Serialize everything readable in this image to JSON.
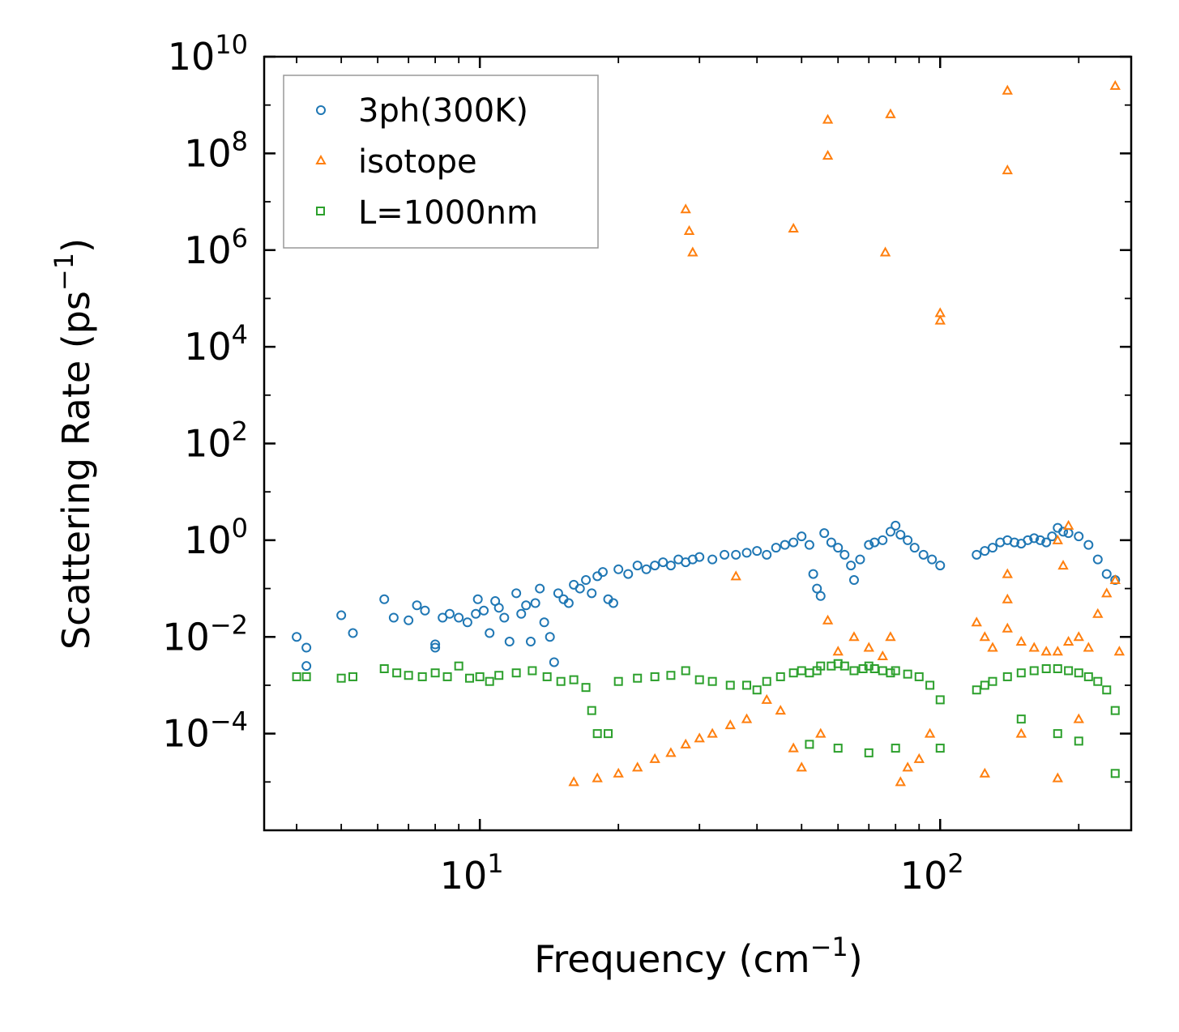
{
  "chart_data": {
    "type": "scatter",
    "title": "",
    "xlabel": "Frequency (cm",
    "xlabel_sup": "−1",
    "xlabel_end": ")",
    "ylabel": "Scattering Rate (ps",
    "ylabel_sup": "−1",
    "ylabel_end": ")",
    "xscale": "log",
    "yscale": "log",
    "xlim": [
      3.4,
      260
    ],
    "ylim": [
      1e-06,
      10000000000.0
    ],
    "x_ticks": [
      {
        "value": 10,
        "base": "10",
        "exp": "1"
      },
      {
        "value": 100,
        "base": "10",
        "exp": "2"
      }
    ],
    "y_ticks": [
      {
        "value": 10000000000.0,
        "base": "10",
        "exp": "10"
      },
      {
        "value": 100000000.0,
        "base": "10",
        "exp": "8"
      },
      {
        "value": 1000000.0,
        "base": "10",
        "exp": "6"
      },
      {
        "value": 10000.0,
        "base": "10",
        "exp": "4"
      },
      {
        "value": 100.0,
        "base": "10",
        "exp": "2"
      },
      {
        "value": 1.0,
        "base": "10",
        "exp": "0"
      },
      {
        "value": 0.01,
        "base": "10",
        "exp": "−2"
      },
      {
        "value": 0.0001,
        "base": "10",
        "exp": "−4"
      }
    ],
    "legend_position": "top-left",
    "series": [
      {
        "name": "3ph(300K)",
        "color": "#1f77b4",
        "marker": "circle",
        "points": [
          [
            4.0,
            0.01
          ],
          [
            4.2,
            0.006
          ],
          [
            4.2,
            0.0025
          ],
          [
            5.0,
            0.028
          ],
          [
            5.3,
            0.012
          ],
          [
            6.2,
            0.06
          ],
          [
            6.5,
            0.025
          ],
          [
            7.0,
            0.022
          ],
          [
            7.3,
            0.045
          ],
          [
            7.6,
            0.035
          ],
          [
            8.0,
            0.007
          ],
          [
            8.0,
            0.006
          ],
          [
            8.3,
            0.025
          ],
          [
            8.6,
            0.03
          ],
          [
            9.0,
            0.025
          ],
          [
            9.4,
            0.02
          ],
          [
            9.8,
            0.03
          ],
          [
            9.9,
            0.06
          ],
          [
            10.2,
            0.035
          ],
          [
            10.5,
            0.012
          ],
          [
            10.8,
            0.055
          ],
          [
            11.0,
            0.04
          ],
          [
            11.3,
            0.025
          ],
          [
            11.6,
            0.008
          ],
          [
            12.0,
            0.08
          ],
          [
            12.3,
            0.03
          ],
          [
            12.6,
            0.045
          ],
          [
            12.9,
            0.008
          ],
          [
            13.2,
            0.05
          ],
          [
            13.5,
            0.1
          ],
          [
            13.8,
            0.02
          ],
          [
            14.2,
            0.01
          ],
          [
            14.5,
            0.003
          ],
          [
            14.8,
            0.08
          ],
          [
            15.2,
            0.06
          ],
          [
            15.6,
            0.05
          ],
          [
            16.0,
            0.12
          ],
          [
            16.5,
            0.1
          ],
          [
            17.0,
            0.15
          ],
          [
            17.5,
            0.08
          ],
          [
            18.0,
            0.18
          ],
          [
            18.5,
            0.22
          ],
          [
            19.0,
            0.06
          ],
          [
            19.5,
            0.05
          ],
          [
            20.0,
            0.25
          ],
          [
            21.0,
            0.2
          ],
          [
            22.0,
            0.3
          ],
          [
            23.0,
            0.25
          ],
          [
            24.0,
            0.3
          ],
          [
            25.0,
            0.35
          ],
          [
            26.0,
            0.3
          ],
          [
            27.0,
            0.4
          ],
          [
            28.0,
            0.35
          ],
          [
            29.0,
            0.4
          ],
          [
            30.0,
            0.45
          ],
          [
            32.0,
            0.4
          ],
          [
            34.0,
            0.5
          ],
          [
            36.0,
            0.5
          ],
          [
            38.0,
            0.55
          ],
          [
            40.0,
            0.6
          ],
          [
            42.0,
            0.5
          ],
          [
            44.0,
            0.7
          ],
          [
            46.0,
            0.8
          ],
          [
            48.0,
            0.9
          ],
          [
            50.0,
            1.2
          ],
          [
            52.0,
            0.8
          ],
          [
            53.0,
            0.2
          ],
          [
            54.0,
            0.1
          ],
          [
            55.0,
            0.07
          ],
          [
            56.0,
            1.4
          ],
          [
            58.0,
            0.9
          ],
          [
            60.0,
            0.7
          ],
          [
            62.0,
            0.5
          ],
          [
            64.0,
            0.3
          ],
          [
            65.0,
            0.15
          ],
          [
            67.0,
            0.4
          ],
          [
            70.0,
            0.8
          ],
          [
            72.0,
            0.9
          ],
          [
            75.0,
            1.0
          ],
          [
            78.0,
            1.5
          ],
          [
            80.0,
            2.0
          ],
          [
            82.0,
            1.3
          ],
          [
            85.0,
            1.0
          ],
          [
            88.0,
            0.7
          ],
          [
            92.0,
            0.5
          ],
          [
            96.0,
            0.4
          ],
          [
            100.0,
            0.3
          ],
          [
            120.0,
            0.5
          ],
          [
            125.0,
            0.6
          ],
          [
            130.0,
            0.7
          ],
          [
            135.0,
            0.9
          ],
          [
            140.0,
            1.0
          ],
          [
            145.0,
            0.9
          ],
          [
            150.0,
            0.85
          ],
          [
            155.0,
            1.0
          ],
          [
            160.0,
            1.1
          ],
          [
            165.0,
            1.0
          ],
          [
            170.0,
            0.9
          ],
          [
            175.0,
            1.2
          ],
          [
            180.0,
            1.8
          ],
          [
            185.0,
            1.5
          ],
          [
            190.0,
            1.4
          ],
          [
            200.0,
            1.2
          ],
          [
            210.0,
            0.8
          ],
          [
            220.0,
            0.4
          ],
          [
            230.0,
            0.2
          ],
          [
            240.0,
            0.15
          ]
        ]
      },
      {
        "name": "isotope",
        "color": "#ff7f0e",
        "marker": "triangle",
        "points": [
          [
            28.0,
            7000000.0
          ],
          [
            28.5,
            2500000.0
          ],
          [
            29.0,
            900000.0
          ],
          [
            36.0,
            0.18
          ],
          [
            48.0,
            2800000.0
          ],
          [
            57.0,
            500000000.0
          ],
          [
            57.0,
            90000000.0
          ],
          [
            57.0,
            0.022
          ],
          [
            78.0,
            650000000.0
          ],
          [
            76.0,
            900000.0
          ],
          [
            100.0,
            50000.0
          ],
          [
            100.0,
            35000.0
          ],
          [
            140.0,
            2000000000.0
          ],
          [
            140.0,
            45000000.0
          ],
          [
            240.0,
            2500000000.0
          ],
          [
            190.0,
            2.0
          ],
          [
            180.0,
            1.0
          ],
          [
            185.0,
            0.3
          ],
          [
            140.0,
            0.2
          ],
          [
            140.0,
            0.06
          ],
          [
            16.0,
            1e-05
          ],
          [
            18.0,
            1.2e-05
          ],
          [
            20.0,
            1.5e-05
          ],
          [
            22.0,
            2e-05
          ],
          [
            24.0,
            3e-05
          ],
          [
            26.0,
            4e-05
          ],
          [
            28.0,
            6e-05
          ],
          [
            30.0,
            8e-05
          ],
          [
            32.0,
            0.0001
          ],
          [
            35.0,
            0.00015
          ],
          [
            38.0,
            0.0002
          ],
          [
            42.0,
            0.0005
          ],
          [
            45.0,
            0.0003
          ],
          [
            48.0,
            5e-05
          ],
          [
            50.0,
            2e-05
          ],
          [
            55.0,
            0.0001
          ],
          [
            60.0,
            0.005
          ],
          [
            65.0,
            0.01
          ],
          [
            70.0,
            0.006
          ],
          [
            75.0,
            0.004
          ],
          [
            78.0,
            0.01
          ],
          [
            82.0,
            1e-05
          ],
          [
            85.0,
            2e-05
          ],
          [
            90.0,
            3e-05
          ],
          [
            95.0,
            0.0001
          ],
          [
            120.0,
            0.02
          ],
          [
            125.0,
            0.01
          ],
          [
            130.0,
            0.006
          ],
          [
            140.0,
            0.015
          ],
          [
            150.0,
            0.008
          ],
          [
            160.0,
            0.006
          ],
          [
            170.0,
            0.005
          ],
          [
            180.0,
            0.005
          ],
          [
            190.0,
            0.008
          ],
          [
            200.0,
            0.01
          ],
          [
            210.0,
            0.006
          ],
          [
            220.0,
            0.03
          ],
          [
            230.0,
            0.08
          ],
          [
            240.0,
            0.15
          ],
          [
            245.0,
            0.005
          ],
          [
            125.0,
            1.5e-05
          ],
          [
            150.0,
            0.0001
          ],
          [
            180.0,
            1.2e-05
          ],
          [
            200.0,
            0.0002
          ]
        ]
      },
      {
        "name": "L=1000nm",
        "color": "#2ca02c",
        "marker": "square",
        "points": [
          [
            4.0,
            0.0015
          ],
          [
            4.2,
            0.0015
          ],
          [
            5.0,
            0.0014
          ],
          [
            5.3,
            0.0015
          ],
          [
            6.2,
            0.0022
          ],
          [
            6.6,
            0.0018
          ],
          [
            7.0,
            0.0016
          ],
          [
            7.5,
            0.0015
          ],
          [
            8.0,
            0.0018
          ],
          [
            8.5,
            0.0015
          ],
          [
            9.0,
            0.0025
          ],
          [
            9.5,
            0.0014
          ],
          [
            10.0,
            0.0015
          ],
          [
            10.5,
            0.0012
          ],
          [
            11.0,
            0.0016
          ],
          [
            12.0,
            0.0018
          ],
          [
            13.0,
            0.002
          ],
          [
            14.0,
            0.0015
          ],
          [
            15.0,
            0.0012
          ],
          [
            16.0,
            0.0013
          ],
          [
            17.0,
            0.0009
          ],
          [
            17.5,
            0.0003
          ],
          [
            18.0,
            0.0001
          ],
          [
            19.0,
            0.0001
          ],
          [
            20.0,
            0.0012
          ],
          [
            22.0,
            0.0014
          ],
          [
            24.0,
            0.0015
          ],
          [
            26.0,
            0.0016
          ],
          [
            28.0,
            0.002
          ],
          [
            30.0,
            0.0013
          ],
          [
            32.0,
            0.0012
          ],
          [
            35.0,
            0.001
          ],
          [
            38.0,
            0.001
          ],
          [
            40.0,
            0.0008
          ],
          [
            42.0,
            0.0012
          ],
          [
            45.0,
            0.0015
          ],
          [
            48.0,
            0.0018
          ],
          [
            50.0,
            0.002
          ],
          [
            52.0,
            0.0018
          ],
          [
            54.0,
            0.002
          ],
          [
            55.0,
            0.0025
          ],
          [
            58.0,
            0.0025
          ],
          [
            60.0,
            0.0028
          ],
          [
            62.0,
            0.0025
          ],
          [
            65.0,
            0.002
          ],
          [
            68.0,
            0.0022
          ],
          [
            70.0,
            0.0025
          ],
          [
            72.0,
            0.0022
          ],
          [
            75.0,
            0.002
          ],
          [
            78.0,
            0.0018
          ],
          [
            80.0,
            0.002
          ],
          [
            85.0,
            0.0017
          ],
          [
            90.0,
            0.0015
          ],
          [
            95.0,
            0.001
          ],
          [
            100.0,
            0.0005
          ],
          [
            100.0,
            5e-05
          ],
          [
            52.0,
            6e-05
          ],
          [
            60.0,
            5e-05
          ],
          [
            70.0,
            4e-05
          ],
          [
            80.0,
            5e-05
          ],
          [
            120.0,
            0.0008
          ],
          [
            125.0,
            0.001
          ],
          [
            130.0,
            0.0012
          ],
          [
            140.0,
            0.0015
          ],
          [
            150.0,
            0.0018
          ],
          [
            160.0,
            0.002
          ],
          [
            170.0,
            0.0022
          ],
          [
            180.0,
            0.0022
          ],
          [
            190.0,
            0.002
          ],
          [
            200.0,
            0.0018
          ],
          [
            210.0,
            0.0015
          ],
          [
            220.0,
            0.0012
          ],
          [
            230.0,
            0.0008
          ],
          [
            240.0,
            0.0003
          ],
          [
            240.0,
            1.5e-05
          ],
          [
            150.0,
            0.0002
          ],
          [
            180.0,
            0.0001
          ],
          [
            200.0,
            7e-05
          ]
        ]
      }
    ]
  }
}
